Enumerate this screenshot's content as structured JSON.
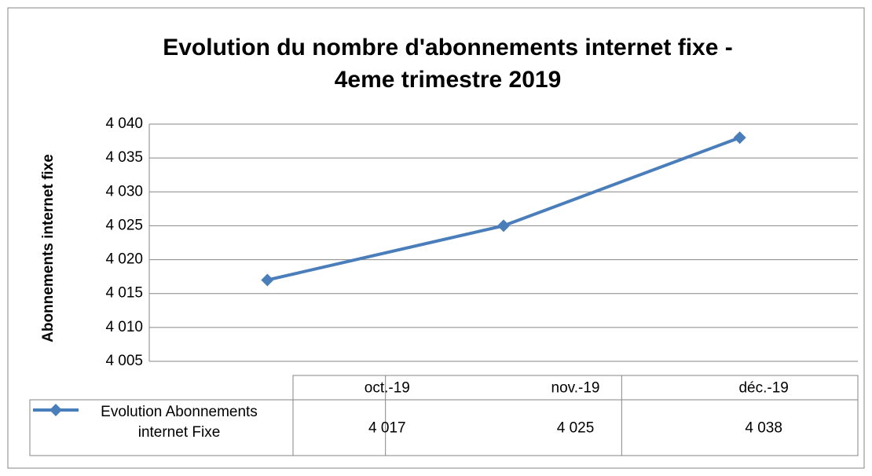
{
  "chart_data": {
    "type": "line",
    "title": [
      "Evolution du nombre d'abonnements internet fixe -",
      "4eme trimestre 2019"
    ],
    "ylabel": "Abonnements internet fixe",
    "categories": [
      "oct.-19",
      "nov.-19",
      "déc.-19"
    ],
    "series": [
      {
        "name": "Evolution Abonnements internet Fixe",
        "color": "#4a7ebb",
        "values": [
          4017,
          4025,
          4038
        ],
        "value_labels": [
          "4 017",
          "4 025",
          "4 038"
        ]
      }
    ],
    "ylim": [
      4005,
      4040
    ],
    "yticks": [
      {
        "value": 4005,
        "label": "4 005"
      },
      {
        "value": 4010,
        "label": "4 010"
      },
      {
        "value": 4015,
        "label": "4 015"
      },
      {
        "value": 4020,
        "label": "4 020"
      },
      {
        "value": 4025,
        "label": "4 025"
      },
      {
        "value": 4030,
        "label": "4 030"
      },
      {
        "value": 4035,
        "label": "4 035"
      },
      {
        "value": 4040,
        "label": "4 040"
      }
    ],
    "grid": true
  }
}
